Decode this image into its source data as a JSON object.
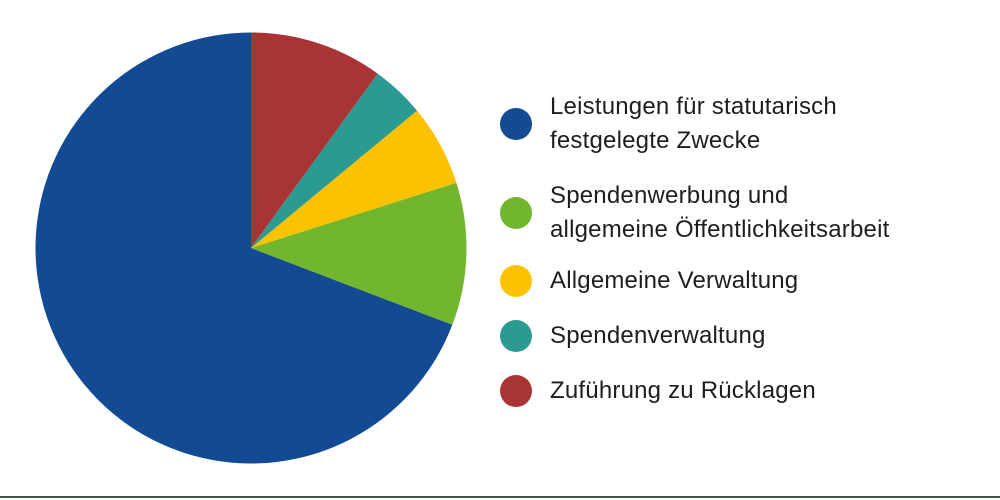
{
  "page": {
    "background_color": "#ffffff"
  },
  "chart_data": {
    "type": "pie",
    "legend_position": "right",
    "start_angle_deg": 90,
    "direction": "counterclockwise",
    "unit": "percent",
    "values_total": 100,
    "slices": [
      {
        "label": "Leistungen für statutarisch\nfestgelegte Zwecke",
        "value": 69.2,
        "color": "#124a94"
      },
      {
        "label": "Spendenwerbung und\nallgemeine Öffentlichkeitsarbeit",
        "value": 10.7,
        "color": "#72b62d"
      },
      {
        "label": "Allgemeine Verwaltung",
        "value": 6.1,
        "color": "#fcc200"
      },
      {
        "label": "Spendenverwaltung",
        "value": 4.0,
        "color": "#2b9a92"
      },
      {
        "label": "Zuführung zu Rücklagen",
        "value": 10.0,
        "color": "#a93434"
      }
    ]
  },
  "footer": {
    "rule_color": "#3e5344"
  }
}
